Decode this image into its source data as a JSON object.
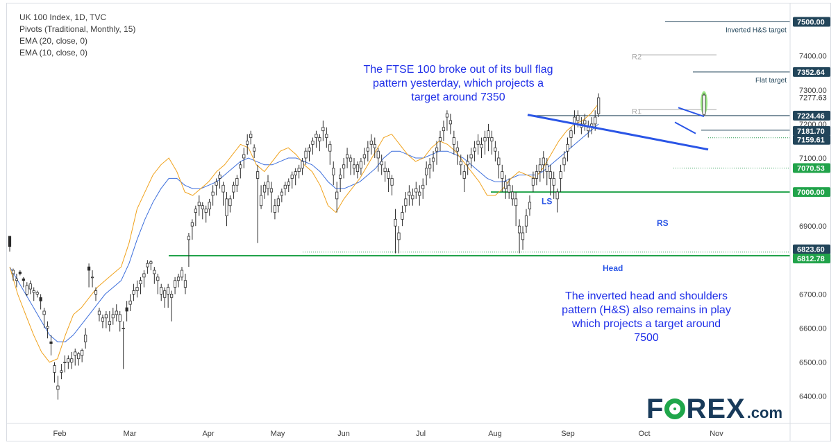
{
  "legend": {
    "line1": "UK 100 Index, 1D, TVC",
    "line2": "Pivots (Traditional, Monthly, 15)",
    "line3": "EMA (20, close, 0)",
    "line4": "EMA (10, close, 0)"
  },
  "annotations": {
    "flag_text": "The FTSE 100 broke out of its bull flag pattern yesterday, which projects a target around 7350",
    "hs_text": "The inverted head and shoulders pattern (H&S) also remains in play which projects a target around 7500"
  },
  "logo": {
    "text_a": "F",
    "text_b": "REX",
    "text_c": ".com"
  },
  "colors": {
    "candle": "#2b2b2b",
    "ema10": "#f0a21c",
    "ema20": "#3d6fdc",
    "support": "#21a34a",
    "trendline": "#2a55e6",
    "annotation": "#1f2fe8",
    "badge": "#22455a",
    "badge_green": "#21a34a",
    "pivot": "#a8a8a8",
    "breakout": "#8ae26e"
  },
  "chart_data": {
    "type": "candlestick",
    "symbol": "UK 100 Index",
    "timeframe": "1D",
    "x_labels": [
      "Feb",
      "Mar",
      "Apr",
      "May",
      "Jun",
      "Jul",
      "Aug",
      "Sep",
      "Oct",
      "Nov"
    ],
    "y_ticks": [
      "6400.00",
      "6500.00",
      "6600.00",
      "6700.00",
      "6800.00",
      "6900.00",
      "7000.00",
      "7100.00",
      "7200.00",
      "7300.00",
      "7400.00"
    ],
    "ylim": [
      6320,
      7550
    ],
    "grid": false,
    "price_badges": [
      {
        "price": 7500.0,
        "label": "7500.00"
      },
      {
        "price": 7352.64,
        "label": "7352.64"
      },
      {
        "price": 7277.63,
        "label": "7277.63",
        "style": "plain"
      },
      {
        "price": 7224.46,
        "label": "7224.46"
      },
      {
        "price": 7181.7,
        "label": "7181.70"
      },
      {
        "price": 7159.61,
        "label": "7159.61"
      },
      {
        "price": 7070.53,
        "label": "7070.53",
        "style": "green"
      },
      {
        "price": 7000.0,
        "label": "7000.00",
        "style": "green"
      },
      {
        "price": 6823.6,
        "label": "6823.60"
      },
      {
        "price": 6812.78,
        "label": "6812.78",
        "style": "green"
      }
    ],
    "level_labels": [
      {
        "price": 7500.0,
        "text": "Inverted H&S target"
      },
      {
        "price": 7352.64,
        "text": "Flat target"
      },
      {
        "price": 7403,
        "text": "R2"
      },
      {
        "price": 7242,
        "text": "R1"
      }
    ],
    "pattern_labels": [
      "LS",
      "Head",
      "RS"
    ],
    "horizontal_levels": [
      {
        "name": "neckline_support",
        "price": 7000,
        "from": "Jul",
        "color": "support"
      },
      {
        "name": "support_6812",
        "price": 6812.78,
        "from": "Mar",
        "color": "support"
      },
      {
        "name": "support_6823",
        "price": 6823.6,
        "from": "May",
        "style": "dotted"
      },
      {
        "name": "support_7070",
        "price": 7070.53,
        "from": "Oct",
        "style": "dotted"
      },
      {
        "name": "flag_low",
        "price": 7181.7,
        "from": "Oct"
      },
      {
        "name": "level_7159",
        "price": 7159.61,
        "from": "Oct",
        "style": "dotted"
      },
      {
        "name": "level_7224",
        "price": 7224.46,
        "from": "Aug"
      },
      {
        "name": "flat_target",
        "price": 7352.64,
        "from": "Oct"
      },
      {
        "name": "hs_target",
        "price": 7500.0,
        "from": "Oct"
      }
    ],
    "candles": [
      [
        6870,
        6860,
        6840,
        6825
      ],
      [
        6760,
        6775,
        6770,
        6740
      ],
      [
        6740,
        6760,
        6745,
        6720
      ],
      [
        6765,
        6770,
        6760,
        6755
      ],
      [
        6745,
        6750,
        6740,
        6720
      ],
      [
        6700,
        6735,
        6725,
        6695
      ],
      [
        6715,
        6740,
        6730,
        6700
      ],
      [
        6705,
        6720,
        6710,
        6680
      ],
      [
        6700,
        6710,
        6705,
        6690
      ],
      [
        6690,
        6700,
        6680,
        6655
      ],
      [
        6640,
        6660,
        6650,
        6600
      ],
      [
        6600,
        6620,
        6605,
        6570
      ],
      [
        6560,
        6580,
        6555,
        6520
      ],
      [
        6470,
        6500,
        6490,
        6440
      ],
      [
        6420,
        6460,
        6430,
        6390
      ],
      [
        6470,
        6495,
        6475,
        6450
      ],
      [
        6500,
        6520,
        6500,
        6470
      ],
      [
        6500,
        6520,
        6510,
        6480
      ],
      [
        6500,
        6530,
        6510,
        6480
      ],
      [
        6520,
        6540,
        6530,
        6490
      ],
      [
        6510,
        6530,
        6525,
        6490
      ],
      [
        6520,
        6540,
        6535,
        6500
      ],
      [
        6560,
        6600,
        6580,
        6540
      ],
      [
        6780,
        6790,
        6770,
        6720
      ],
      [
        6750,
        6770,
        6750,
        6720
      ],
      [
        6700,
        6720,
        6710,
        6680
      ],
      [
        6640,
        6660,
        6650,
        6620
      ],
      [
        6620,
        6640,
        6630,
        6600
      ],
      [
        6630,
        6650,
        6640,
        6600
      ],
      [
        6610,
        6650,
        6620,
        6590
      ],
      [
        6630,
        6660,
        6640,
        6610
      ],
      [
        6640,
        6670,
        6650,
        6620
      ],
      [
        6620,
        6650,
        6640,
        6590
      ],
      [
        6600,
        6620,
        6600,
        6480
      ],
      [
        6660,
        6680,
        6650,
        6620
      ],
      [
        6670,
        6700,
        6680,
        6650
      ],
      [
        6700,
        6730,
        6710,
        6680
      ],
      [
        6710,
        6740,
        6720,
        6690
      ],
      [
        6730,
        6750,
        6740,
        6700
      ],
      [
        6750,
        6770,
        6760,
        6720
      ],
      [
        6780,
        6800,
        6790,
        6760
      ],
      [
        6790,
        6800,
        6795,
        6770
      ],
      [
        6760,
        6780,
        6770,
        6730
      ],
      [
        6740,
        6760,
        6750,
        6700
      ],
      [
        6700,
        6730,
        6720,
        6680
      ],
      [
        6690,
        6720,
        6710,
        6660
      ],
      [
        6700,
        6730,
        6720,
        6660
      ],
      [
        6690,
        6710,
        6700,
        6620
      ],
      [
        6720,
        6750,
        6740,
        6700
      ],
      [
        6740,
        6760,
        6750,
        6720
      ],
      [
        6750,
        6780,
        6770,
        6740
      ],
      [
        6720,
        6760,
        6740,
        6700
      ],
      [
        6860,
        6880,
        6870,
        6780
      ],
      [
        6900,
        6920,
        6910,
        6860
      ],
      [
        6940,
        6960,
        6950,
        6900
      ],
      [
        6960,
        6990,
        6970,
        6930
      ],
      [
        6950,
        6970,
        6960,
        6920
      ],
      [
        6940,
        6960,
        6950,
        6910
      ],
      [
        6950,
        6980,
        6970,
        6930
      ],
      [
        6990,
        7020,
        7000,
        6960
      ],
      [
        7020,
        7040,
        7030,
        6990
      ],
      [
        7040,
        7060,
        7050,
        7010
      ],
      [
        7000,
        7030,
        7020,
        6960
      ],
      [
        6930,
        7000,
        6980,
        6900
      ],
      [
        6960,
        6990,
        6980,
        6940
      ],
      [
        7000,
        7030,
        7020,
        6980
      ],
      [
        7020,
        7050,
        7040,
        7000
      ],
      [
        7070,
        7090,
        7080,
        7040
      ],
      [
        7100,
        7130,
        7110,
        7070
      ],
      [
        7140,
        7170,
        7150,
        7110
      ],
      [
        7160,
        7180,
        7170,
        7140
      ],
      [
        7120,
        7140,
        7130,
        7100
      ],
      [
        7040,
        7080,
        7060,
        6850
      ],
      [
        6960,
        7020,
        6990,
        6950
      ],
      [
        7000,
        7030,
        7020,
        6980
      ],
      [
        7010,
        7050,
        7030,
        6990
      ],
      [
        7000,
        7030,
        7010,
        6940
      ],
      [
        6940,
        6980,
        6960,
        6920
      ],
      [
        6960,
        6990,
        6980,
        6940
      ],
      [
        6990,
        7010,
        7000,
        6970
      ],
      [
        7010,
        7030,
        7020,
        6990
      ],
      [
        7020,
        7040,
        7030,
        7000
      ],
      [
        7040,
        7060,
        7050,
        7010
      ],
      [
        7050,
        7070,
        7060,
        7020
      ],
      [
        7060,
        7080,
        7070,
        7040
      ],
      [
        7070,
        7100,
        7090,
        7050
      ],
      [
        7100,
        7130,
        7120,
        7080
      ],
      [
        7120,
        7140,
        7130,
        7090
      ],
      [
        7140,
        7160,
        7150,
        7110
      ],
      [
        7160,
        7180,
        7170,
        7130
      ],
      [
        7150,
        7170,
        7160,
        7120
      ],
      [
        7180,
        7210,
        7190,
        7150
      ],
      [
        7160,
        7190,
        7170,
        7130
      ],
      [
        7120,
        7150,
        7140,
        7080
      ],
      [
        7050,
        7090,
        7070,
        7020
      ],
      [
        6980,
        7030,
        7000,
        6940
      ],
      [
        7040,
        7070,
        7050,
        7000
      ],
      [
        7070,
        7100,
        7080,
        7040
      ],
      [
        7100,
        7130,
        7110,
        7070
      ],
      [
        7090,
        7110,
        7100,
        7050
      ],
      [
        7070,
        7100,
        7080,
        7050
      ],
      [
        7060,
        7090,
        7080,
        7040
      ],
      [
        7070,
        7100,
        7090,
        7050
      ],
      [
        7100,
        7130,
        7110,
        7080
      ],
      [
        7120,
        7150,
        7130,
        7090
      ],
      [
        7140,
        7170,
        7150,
        7110
      ],
      [
        7130,
        7160,
        7140,
        7100
      ],
      [
        7100,
        7130,
        7120,
        7060
      ],
      [
        7080,
        7110,
        7090,
        7050
      ],
      [
        7060,
        7090,
        7070,
        7030
      ],
      [
        7040,
        7070,
        7060,
        7000
      ],
      [
        7020,
        7050,
        7040,
        6990
      ],
      [
        6900,
        6950,
        6920,
        6820
      ],
      [
        6860,
        6900,
        6880,
        6820
      ],
      [
        6920,
        6960,
        6940,
        6900
      ],
      [
        6960,
        7000,
        6980,
        6940
      ],
      [
        6990,
        7020,
        7000,
        6960
      ],
      [
        6980,
        7010,
        6990,
        6960
      ],
      [
        7000,
        7030,
        7010,
        6980
      ],
      [
        6990,
        7020,
        7000,
        6960
      ],
      [
        7010,
        7040,
        7020,
        6980
      ],
      [
        7050,
        7090,
        7070,
        7020
      ],
      [
        7070,
        7100,
        7080,
        7040
      ],
      [
        7090,
        7120,
        7100,
        7060
      ],
      [
        7120,
        7150,
        7130,
        7080
      ],
      [
        7150,
        7180,
        7160,
        7120
      ],
      [
        7180,
        7210,
        7190,
        7150
      ],
      [
        7220,
        7240,
        7230,
        7180
      ],
      [
        7200,
        7230,
        7210,
        7170
      ],
      [
        7140,
        7180,
        7160,
        7110
      ],
      [
        7120,
        7150,
        7130,
        7080
      ],
      [
        7080,
        7110,
        7090,
        7050
      ],
      [
        7040,
        7080,
        7060,
        7000
      ],
      [
        7080,
        7110,
        7090,
        7050
      ],
      [
        7100,
        7130,
        7110,
        7070
      ],
      [
        7120,
        7150,
        7130,
        7090
      ],
      [
        7140,
        7170,
        7150,
        7110
      ],
      [
        7130,
        7160,
        7140,
        7100
      ],
      [
        7150,
        7180,
        7160,
        7110
      ],
      [
        7160,
        7200,
        7180,
        7120
      ],
      [
        7150,
        7180,
        7160,
        7110
      ],
      [
        7120,
        7150,
        7130,
        7090
      ],
      [
        7080,
        7120,
        7100,
        7040
      ],
      [
        7040,
        7080,
        7060,
        7000
      ],
      [
        7010,
        7050,
        7030,
        6980
      ],
      [
        7000,
        7040,
        7020,
        6980
      ],
      [
        6980,
        7020,
        7000,
        6960
      ],
      [
        6960,
        7000,
        6980,
        6900
      ],
      [
        6880,
        6920,
        6900,
        6820
      ],
      [
        6860,
        6900,
        6880,
        6830
      ],
      [
        6900,
        6950,
        6930,
        6880
      ],
      [
        6950,
        6990,
        6970,
        6930
      ],
      [
        7020,
        7060,
        7040,
        7000
      ],
      [
        7040,
        7080,
        7060,
        7020
      ],
      [
        7060,
        7100,
        7080,
        7030
      ],
      [
        7080,
        7120,
        7100,
        7040
      ],
      [
        7060,
        7100,
        7080,
        7020
      ],
      [
        7040,
        7080,
        7060,
        6990
      ],
      [
        7020,
        7060,
        7040,
        6980
      ],
      [
        6980,
        7010,
        7000,
        6940
      ],
      [
        7040,
        7080,
        7060,
        7000
      ],
      [
        7080,
        7120,
        7100,
        7060
      ],
      [
        7120,
        7160,
        7140,
        7090
      ],
      [
        7160,
        7190,
        7180,
        7130
      ],
      [
        7200,
        7240,
        7220,
        7170
      ],
      [
        7210,
        7240,
        7225,
        7190
      ],
      [
        7190,
        7220,
        7200,
        7170
      ],
      [
        7200,
        7230,
        7210,
        7180
      ],
      [
        7180,
        7210,
        7190,
        7160
      ],
      [
        7190,
        7220,
        7200,
        7170
      ],
      [
        7200,
        7240,
        7220,
        7180
      ],
      [
        7230,
        7290,
        7277,
        7220
      ]
    ],
    "ema10": [
      6780,
      6700,
      6640,
      6580,
      6530,
      6500,
      6510,
      6580,
      6640,
      6660,
      6690,
      6720,
      6740,
      6760,
      6780,
      6850,
      6950,
      7000,
      7050,
      7080,
      7100,
      7060,
      7000,
      6990,
      7010,
      7030,
      7060,
      7080,
      7110,
      7140,
      7130,
      7080,
      7060,
      7090,
      7120,
      7130,
      7110,
      7080,
      7060,
      7020,
      6960,
      6940,
      6980,
      7010,
      7040,
      7080,
      7120,
      7160,
      7170,
      7140,
      7110,
      7090,
      7100,
      7130,
      7150,
      7140,
      7120,
      7090,
      7060,
      7030,
      6990,
      6990,
      7010,
      7040,
      7060,
      7050,
      7040,
      7070,
      7110,
      7150,
      7180,
      7200,
      7210,
      7230,
      7260
    ],
    "ema20": [
      6780,
      6740,
      6700,
      6660,
      6620,
      6580,
      6560,
      6560,
      6580,
      6610,
      6640,
      6670,
      6700,
      6720,
      6740,
      6790,
      6860,
      6920,
      6970,
      7010,
      7040,
      7040,
      7020,
      7010,
      7010,
      7020,
      7030,
      7050,
      7070,
      7090,
      7100,
      7090,
      7080,
      7080,
      7090,
      7100,
      7100,
      7090,
      7080,
      7060,
      7030,
      7010,
      7010,
      7020,
      7030,
      7050,
      7070,
      7100,
      7120,
      7120,
      7110,
      7100,
      7100,
      7110,
      7120,
      7120,
      7110,
      7100,
      7080,
      7060,
      7040,
      7030,
      7030,
      7040,
      7050,
      7050,
      7050,
      7060,
      7080,
      7100,
      7120,
      7140,
      7160,
      7180,
      7200
    ]
  }
}
